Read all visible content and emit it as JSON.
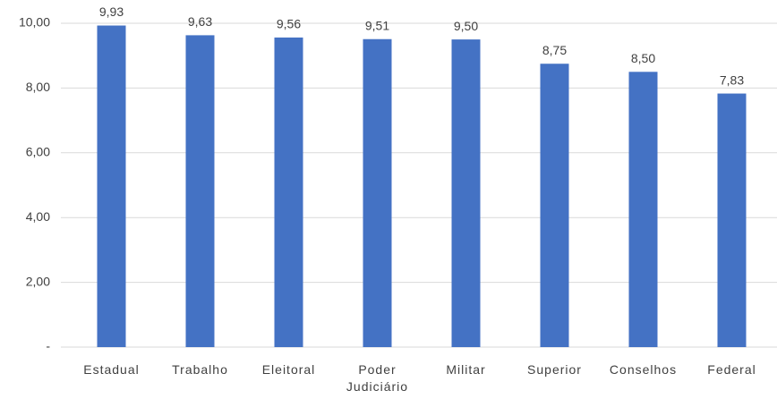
{
  "chart_data": {
    "type": "bar",
    "categories": [
      "Estadual",
      "Trabalho",
      "Eleitoral",
      "Poder Judiciário",
      "Militar",
      "Superior",
      "Conselhos",
      "Federal"
    ],
    "values": [
      9.93,
      9.63,
      9.56,
      9.51,
      9.5,
      8.75,
      8.5,
      7.83
    ],
    "value_labels": [
      "9,93",
      "9,63",
      "9,56",
      "9,51",
      "9,50",
      "8,75",
      "8,50",
      "7,83"
    ],
    "color": "#4472c4",
    "ylim": [
      0,
      10
    ],
    "yticks": [
      {
        "value": 0,
        "label": "-"
      },
      {
        "value": 2,
        "label": "2,00"
      },
      {
        "value": 4,
        "label": "4,00"
      },
      {
        "value": 6,
        "label": "6,00"
      },
      {
        "value": 8,
        "label": "8,00"
      },
      {
        "value": 10,
        "label": "10,00"
      }
    ],
    "grid": true
  }
}
